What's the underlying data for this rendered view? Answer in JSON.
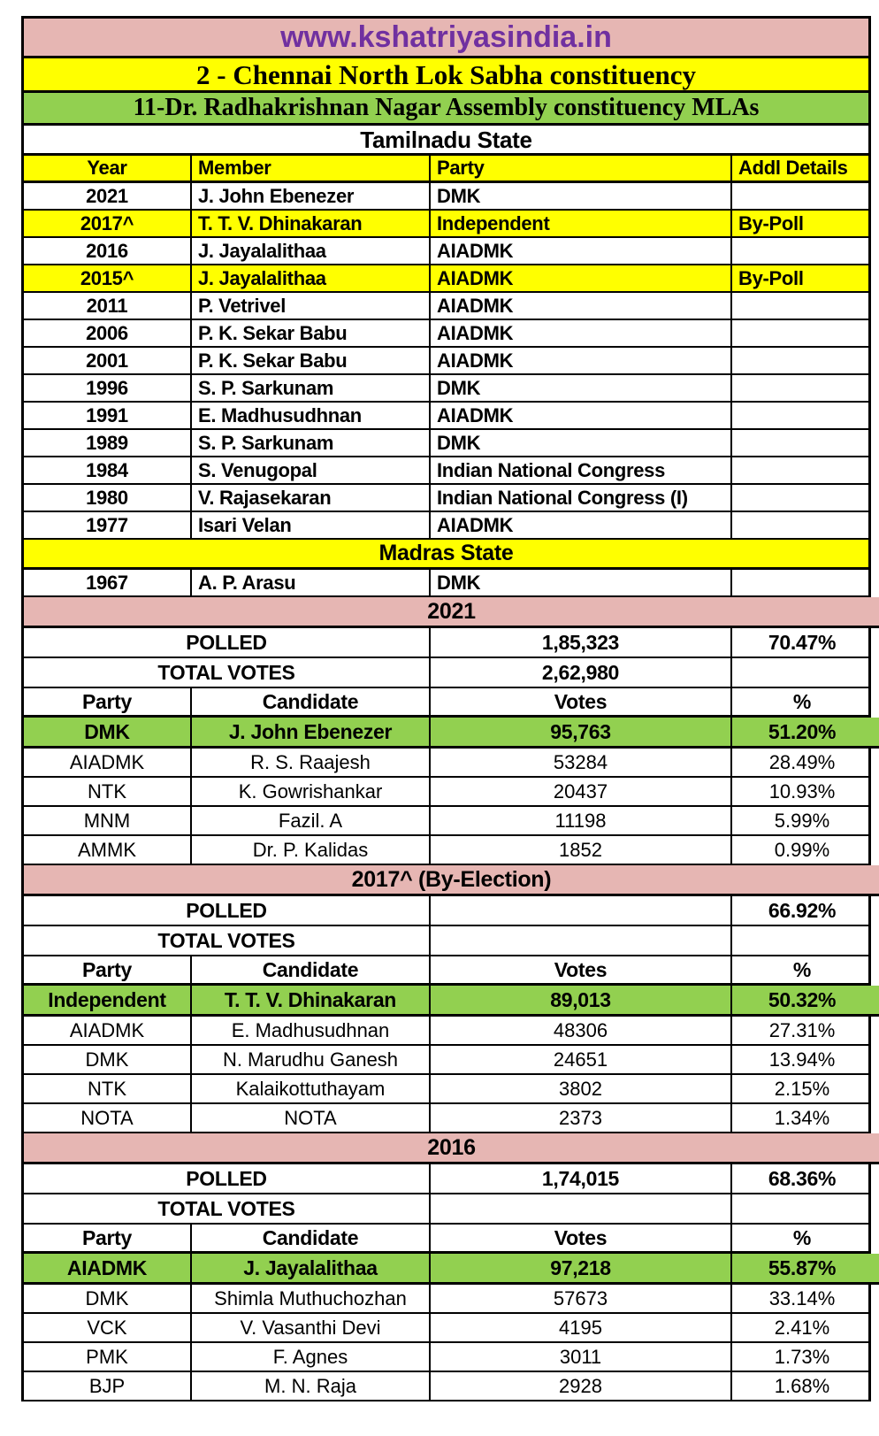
{
  "page": {
    "url_banner": "www.kshatriyasindia.in",
    "title": "2 - Chennai North Lok Sabha constituency",
    "subtitle": "11-Dr. Radhakrishnan Nagar Assembly constituency MLAs",
    "state_header": "Tamilnadu State",
    "madras_header": "Madras State"
  },
  "colors": {
    "banner_pink": "#E6B6B3",
    "highlight_yellow": "#FFFF00",
    "winner_green": "#92D050",
    "url_purple": "#7030A0",
    "border_black": "#000000"
  },
  "mla_table": {
    "columns": [
      "Year",
      "Member",
      "Party",
      "Addl Details"
    ],
    "rows": [
      {
        "year": "2021",
        "member": "J. John Ebenezer",
        "party": "DMK",
        "addl": "",
        "highlighted": false
      },
      {
        "year": "2017^",
        "member": "T. T. V. Dhinakaran",
        "party": "Independent",
        "addl": "By-Poll",
        "highlighted": true
      },
      {
        "year": "2016",
        "member": "J. Jayalalithaa",
        "party": "AIADMK",
        "addl": "",
        "highlighted": false
      },
      {
        "year": "2015^",
        "member": "J. Jayalalithaa",
        "party": "AIADMK",
        "addl": "By-Poll",
        "highlighted": true
      },
      {
        "year": "2011",
        "member": "P. Vetrivel",
        "party": "AIADMK",
        "addl": "",
        "highlighted": false
      },
      {
        "year": "2006",
        "member": "P. K. Sekar Babu",
        "party": "AIADMK",
        "addl": "",
        "highlighted": false
      },
      {
        "year": "2001",
        "member": "P. K. Sekar Babu",
        "party": "AIADMK",
        "addl": "",
        "highlighted": false
      },
      {
        "year": "1996",
        "member": "S. P. Sarkunam",
        "party": "DMK",
        "addl": "",
        "highlighted": false
      },
      {
        "year": "1991",
        "member": "E. Madhusudhnan",
        "party": "AIADMK",
        "addl": "",
        "highlighted": false
      },
      {
        "year": "1989",
        "member": "S. P. Sarkunam",
        "party": "DMK",
        "addl": "",
        "highlighted": false
      },
      {
        "year": "1984",
        "member": "S. Venugopal",
        "party": "Indian National Congress",
        "addl": "",
        "highlighted": false
      },
      {
        "year": "1980",
        "member": "V. Rajasekaran",
        "party": "Indian National Congress (I)",
        "addl": "",
        "highlighted": false
      },
      {
        "year": "1977",
        "member": "Isari Velan",
        "party": "AIADMK",
        "addl": "",
        "highlighted": false
      }
    ],
    "madras_rows": [
      {
        "year": "1967",
        "member": "A. P. Arasu",
        "party": "DMK",
        "addl": "",
        "highlighted": false
      }
    ]
  },
  "elections": [
    {
      "title": "2021",
      "polled_label": "POLLED",
      "total_label": "TOTAL VOTES",
      "polled_votes": "1,85,323",
      "polled_pct": "70.47%",
      "total_votes": "2,62,980",
      "total_pct": "",
      "columns": [
        "Party",
        "Candidate",
        "Votes",
        "%"
      ],
      "results": [
        {
          "party": "DMK",
          "candidate": "J. John Ebenezer",
          "votes": "95,763",
          "pct": "51.20%",
          "winner": true
        },
        {
          "party": "AIADMK",
          "candidate": "R. S. Raajesh",
          "votes": "53284",
          "pct": "28.49%",
          "winner": false
        },
        {
          "party": "NTK",
          "candidate": "K. Gowrishankar",
          "votes": "20437",
          "pct": "10.93%",
          "winner": false
        },
        {
          "party": "MNM",
          "candidate": "Fazil. A",
          "votes": "11198",
          "pct": "5.99%",
          "winner": false
        },
        {
          "party": "AMMK",
          "candidate": "Dr. P. Kalidas",
          "votes": "1852",
          "pct": "0.99%",
          "winner": false
        }
      ]
    },
    {
      "title": "2017^ (By-Election)",
      "polled_label": "POLLED",
      "total_label": "TOTAL VOTES",
      "polled_votes": "",
      "polled_pct": "66.92%",
      "total_votes": "",
      "total_pct": "",
      "columns": [
        "Party",
        "Candidate",
        "Votes",
        "%"
      ],
      "results": [
        {
          "party": "Independent",
          "candidate": "T. T. V. Dhinakaran",
          "votes": "89,013",
          "pct": "50.32%",
          "winner": true
        },
        {
          "party": "AIADMK",
          "candidate": "E. Madhusudhnan",
          "votes": "48306",
          "pct": "27.31%",
          "winner": false
        },
        {
          "party": "DMK",
          "candidate": "N. Marudhu Ganesh",
          "votes": "24651",
          "pct": "13.94%",
          "winner": false
        },
        {
          "party": "NTK",
          "candidate": "Kalaikottuthayam",
          "votes": "3802",
          "pct": "2.15%",
          "winner": false
        },
        {
          "party": "NOTA",
          "candidate": "NOTA",
          "votes": "2373",
          "pct": "1.34%",
          "winner": false
        }
      ]
    },
    {
      "title": "2016",
      "polled_label": "POLLED",
      "total_label": "TOTAL VOTES",
      "polled_votes": "1,74,015",
      "polled_pct": "68.36%",
      "total_votes": "",
      "total_pct": "",
      "columns": [
        "Party",
        "Candidate",
        "Votes",
        "%"
      ],
      "results": [
        {
          "party": "AIADMK",
          "candidate": "J. Jayalalithaa",
          "votes": "97,218",
          "pct": "55.87%",
          "winner": true
        },
        {
          "party": "DMK",
          "candidate": "Shimla Muthuchozhan",
          "votes": "57673",
          "pct": "33.14%",
          "winner": false
        },
        {
          "party": "VCK",
          "candidate": "V. Vasanthi Devi",
          "votes": "4195",
          "pct": "2.41%",
          "winner": false
        },
        {
          "party": "PMK",
          "candidate": "F. Agnes",
          "votes": "3011",
          "pct": "1.73%",
          "winner": false
        },
        {
          "party": "BJP",
          "candidate": "M. N. Raja",
          "votes": "2928",
          "pct": "1.68%",
          "winner": false
        }
      ]
    }
  ]
}
